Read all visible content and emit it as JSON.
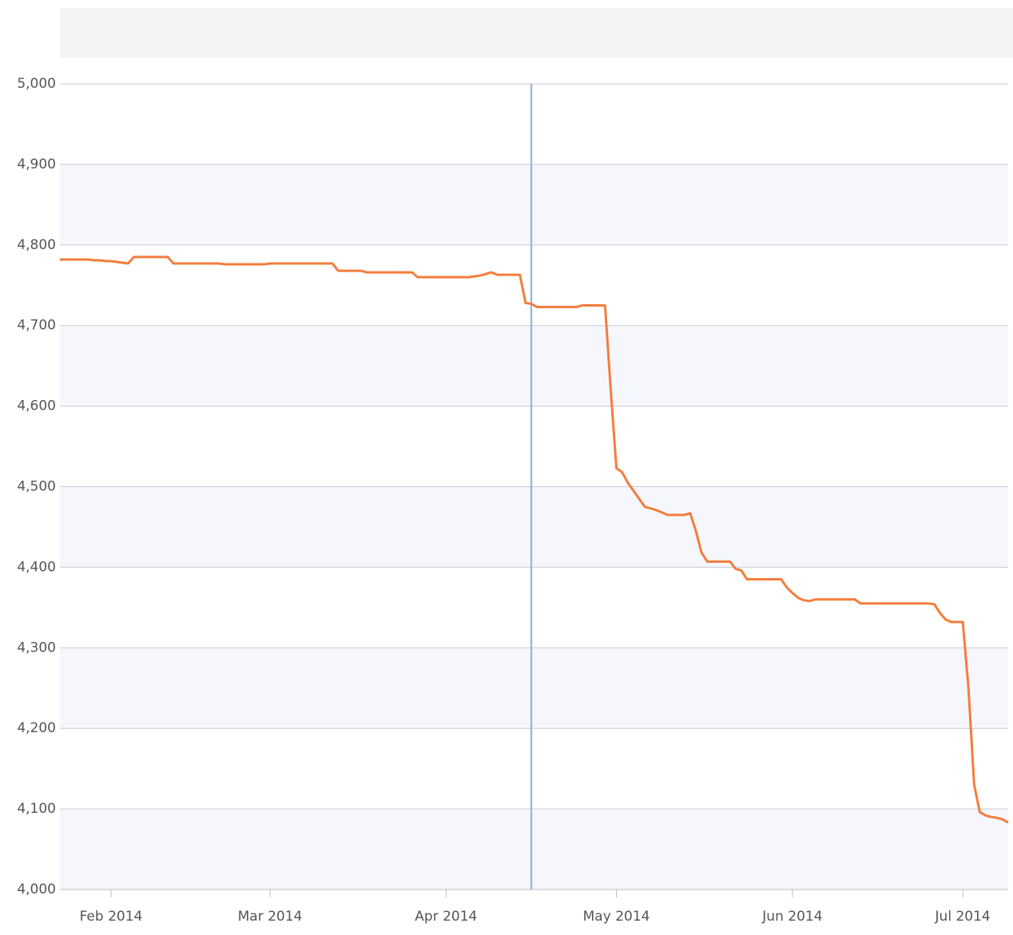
{
  "chart_data": {
    "type": "line",
    "categories": [
      null,
      null,
      null,
      null,
      null,
      null,
      null,
      null,
      null,
      "Feb 2014",
      null,
      null,
      null,
      null,
      null,
      null,
      null,
      null,
      null,
      null,
      null,
      null,
      null,
      null,
      null,
      null,
      null,
      null,
      null,
      null,
      null,
      null,
      null,
      null,
      null,
      null,
      null,
      "Mar 2014",
      null,
      null,
      null,
      null,
      null,
      null,
      null,
      null,
      null,
      null,
      null,
      null,
      null,
      null,
      null,
      null,
      null,
      null,
      null,
      null,
      null,
      null,
      null,
      null,
      null,
      null,
      null,
      null,
      null,
      null,
      "Apr 2014",
      null,
      null,
      null,
      null,
      null,
      null,
      null,
      null,
      null,
      null,
      null,
      null,
      null,
      null,
      null,
      null,
      null,
      null,
      null,
      null,
      null,
      null,
      null,
      null,
      null,
      null,
      null,
      null,
      null,
      "May 2014",
      null,
      null,
      null,
      null,
      null,
      null,
      null,
      null,
      null,
      null,
      null,
      null,
      null,
      null,
      null,
      null,
      null,
      null,
      null,
      null,
      null,
      null,
      null,
      null,
      null,
      null,
      null,
      null,
      null,
      null,
      "Jun 2014",
      null,
      null,
      null,
      null,
      null,
      null,
      null,
      null,
      null,
      null,
      null,
      null,
      null,
      null,
      null,
      null,
      null,
      null,
      null,
      null,
      null,
      null,
      null,
      null,
      null,
      null,
      null,
      null,
      null,
      "Jul 2014",
      null,
      null,
      null,
      null,
      null,
      null,
      null,
      null
    ],
    "series": [
      {
        "color": "#f47d3c",
        "values": [
          4782,
          4782,
          4782,
          4782,
          4782,
          4782,
          4781,
          4781,
          4780,
          4780,
          4779,
          4778,
          4777,
          4785,
          4785,
          4785,
          4785,
          4785,
          4785,
          4785,
          4777,
          4777,
          4777,
          4777,
          4777,
          4777,
          4777,
          4777,
          4777,
          4776,
          4776,
          4776,
          4776,
          4776,
          4776,
          4776,
          4776,
          4777,
          4777,
          4777,
          4777,
          4777,
          4777,
          4777,
          4777,
          4777,
          4777,
          4777,
          4777,
          4768,
          4768,
          4768,
          4768,
          4768,
          4766,
          4766,
          4766,
          4766,
          4766,
          4766,
          4766,
          4766,
          4766,
          4760,
          4760,
          4760,
          4760,
          4760,
          4760,
          4760,
          4760,
          4760,
          4760,
          4761,
          4762,
          4764,
          4766,
          4763,
          4763,
          4763,
          4763,
          4763,
          4728,
          4727,
          4723,
          4723,
          4723,
          4723,
          4723,
          4723,
          4723,
          4723,
          4725,
          4725,
          4725,
          4725,
          4725,
          4620,
          4523,
          4518,
          4505,
          4495,
          4485,
          4475,
          4473,
          4471,
          4468,
          4465,
          4465,
          4465,
          4465,
          4467,
          4445,
          4418,
          4407,
          4407,
          4407,
          4407,
          4407,
          4398,
          4396,
          4385,
          4385,
          4385,
          4385,
          4385,
          4385,
          4385,
          4375,
          4368,
          4362,
          4359,
          4358,
          4360,
          4360,
          4360,
          4360,
          4360,
          4360,
          4360,
          4360,
          4355,
          4355,
          4355,
          4355,
          4355,
          4355,
          4355,
          4355,
          4355,
          4355,
          4355,
          4355,
          4355,
          4354,
          4343,
          4335,
          4332,
          4332,
          4332,
          4250,
          4130,
          4096,
          4092,
          4090,
          4089,
          4087,
          4083
        ]
      }
    ],
    "ylim": [
      4000,
      5000
    ],
    "yticks": [
      {
        "value": 4000,
        "label": "4,000"
      },
      {
        "value": 4100,
        "label": "4,100"
      },
      {
        "value": 4200,
        "label": "4,200"
      },
      {
        "value": 4300,
        "label": "4,300"
      },
      {
        "value": 4400,
        "label": "4,400"
      },
      {
        "value": 4500,
        "label": "4,500"
      },
      {
        "value": 4600,
        "label": "4,600"
      },
      {
        "value": 4700,
        "label": "4,700"
      },
      {
        "value": 4800,
        "label": "4,800"
      },
      {
        "value": 4900,
        "label": "4,900"
      },
      {
        "value": 5000,
        "label": "5,000"
      }
    ],
    "grid": true
  }
}
